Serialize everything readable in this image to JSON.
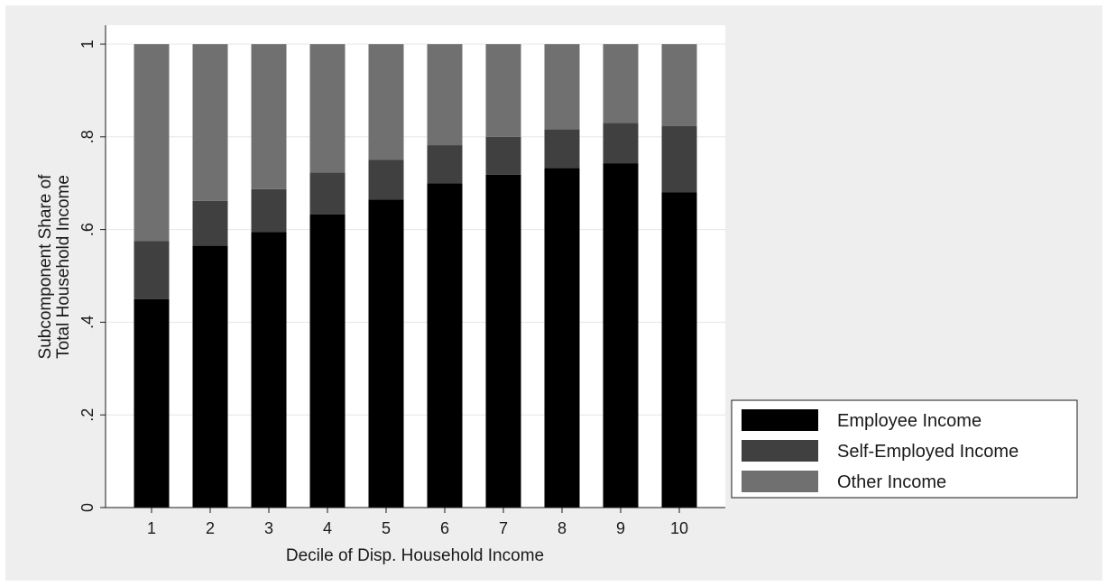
{
  "colors": {
    "page_border": "#ffffff",
    "chart_background": "#eeeeee",
    "plot_background": "#ffffff",
    "grid": "#e6e6e6",
    "axis": "#1a1a1a",
    "series": [
      "#000000",
      "#404040",
      "#707070"
    ]
  },
  "chart_data": {
    "type": "bar",
    "stacked": true,
    "title": "",
    "xlabel": "Decile of Disp. Household Income",
    "ylabel_lines": [
      "Subcomponent Share of",
      "Total Household Income"
    ],
    "categories": [
      "1",
      "2",
      "3",
      "4",
      "5",
      "6",
      "7",
      "8",
      "9",
      "10"
    ],
    "series": [
      {
        "name": "Employee Income",
        "values": [
          0.45,
          0.565,
          0.595,
          0.633,
          0.665,
          0.7,
          0.718,
          0.733,
          0.743,
          0.68
        ]
      },
      {
        "name": "Self-Employed Income",
        "values": [
          0.125,
          0.097,
          0.092,
          0.09,
          0.085,
          0.082,
          0.082,
          0.083,
          0.087,
          0.143
        ]
      },
      {
        "name": "Other Income",
        "values": [
          0.425,
          0.338,
          0.313,
          0.277,
          0.25,
          0.218,
          0.2,
          0.184,
          0.17,
          0.177
        ]
      }
    ],
    "ylim": [
      0,
      1
    ],
    "yticks": [
      0,
      0.2,
      0.4,
      0.6,
      0.8,
      1
    ],
    "ytick_labels": [
      "0",
      ".2",
      ".4",
      ".6",
      ".8",
      "1"
    ],
    "grid": true,
    "legend_position": "bottom-right, outside plot"
  }
}
